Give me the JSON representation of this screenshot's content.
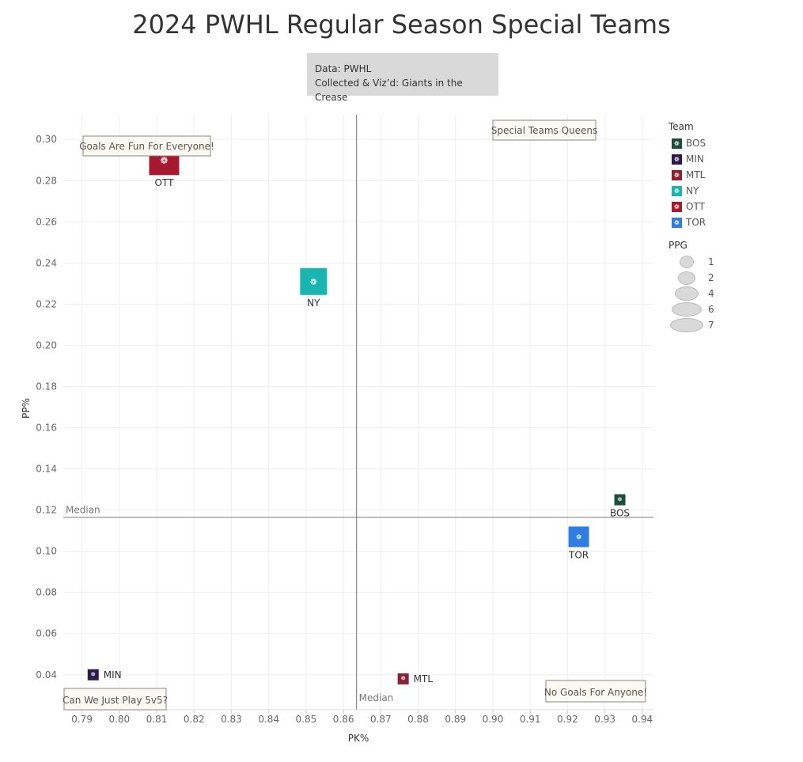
{
  "title": "2024 PWHL Regular Season Special Teams",
  "source": {
    "line1": "Data: PWHL",
    "line2": "Collected & Viz’d: Giants in the Crease"
  },
  "legend": {
    "team_title": "Team",
    "teams": [
      {
        "abbr": "BOS",
        "color": "#1b4d3b"
      },
      {
        "abbr": "MIN",
        "color": "#2e1a4a"
      },
      {
        "abbr": "MTL",
        "color": "#8b2232"
      },
      {
        "abbr": "NY",
        "color": "#1ab5b0"
      },
      {
        "abbr": "OTT",
        "color": "#a6192e"
      },
      {
        "abbr": "TOR",
        "color": "#2f7de1"
      }
    ],
    "ppg_title": "PPG",
    "ppg_items": [
      "1",
      "2",
      "4",
      "6",
      "7"
    ]
  },
  "annotations": {
    "top_left": "Goals Are Fun For Everyone!",
    "top_right": "Special Teams Queens",
    "bottom_left": "Can We Just Play 5v5?",
    "bottom_right": "No Goals For Anyone!"
  },
  "chart_data": {
    "type": "scatter",
    "title": "2024 PWHL Regular Season Special Teams",
    "xlabel": "PK%",
    "ylabel": "PP%",
    "xlim": [
      0.785,
      0.943
    ],
    "ylim": [
      0.023,
      0.312
    ],
    "x_ticks": [
      "0.79",
      "0.80",
      "0.81",
      "0.82",
      "0.83",
      "0.84",
      "0.85",
      "0.86",
      "0.87",
      "0.88",
      "0.89",
      "0.90",
      "0.91",
      "0.92",
      "0.93",
      "0.94"
    ],
    "y_ticks": [
      "0.04",
      "0.06",
      "0.08",
      "0.10",
      "0.12",
      "0.14",
      "0.16",
      "0.18",
      "0.20",
      "0.22",
      "0.24",
      "0.26",
      "0.28",
      "0.30"
    ],
    "grid": true,
    "median_x": 0.8635,
    "median_y": 0.1165,
    "median_label": "Median",
    "points": [
      {
        "team": "BOS",
        "pk": 0.934,
        "pp": 0.125,
        "ppg": 1,
        "color": "#1b4d3b"
      },
      {
        "team": "MIN",
        "pk": 0.793,
        "pp": 0.04,
        "ppg": 1,
        "color": "#2e1a4a"
      },
      {
        "team": "MTL",
        "pk": 0.876,
        "pp": 0.038,
        "ppg": 1,
        "color": "#8b2232"
      },
      {
        "team": "NY",
        "pk": 0.852,
        "pp": 0.231,
        "ppg": 6,
        "color": "#1ab5b0"
      },
      {
        "team": "OTT",
        "pk": 0.812,
        "pp": 0.29,
        "ppg": 7,
        "color": "#a6192e"
      },
      {
        "team": "TOR",
        "pk": 0.923,
        "pp": 0.107,
        "ppg": 4,
        "color": "#2f7de1"
      }
    ]
  }
}
